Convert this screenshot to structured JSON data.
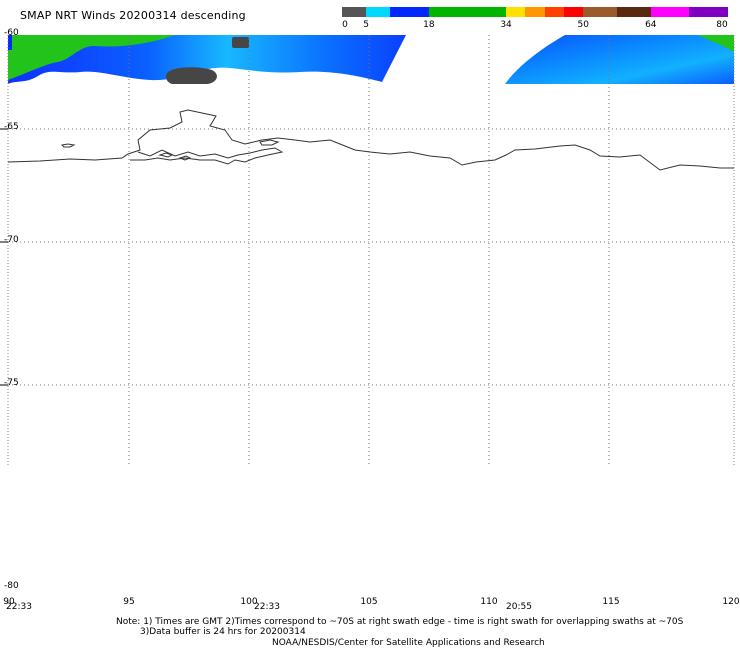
{
  "title": "SMAP NRT Winds  20200314 descending",
  "colorbar": {
    "segments": [
      {
        "from": 0,
        "to": 5,
        "color": "#555555"
      },
      {
        "from": 5,
        "to": 10,
        "color": "#00d8ff"
      },
      {
        "from": 10,
        "to": 18,
        "color": "#0028ff"
      },
      {
        "from": 18,
        "to": 34,
        "color": "#00b400"
      },
      {
        "from": 34,
        "to": 38,
        "color": "#ffe000"
      },
      {
        "from": 38,
        "to": 42,
        "color": "#ff9800"
      },
      {
        "from": 42,
        "to": 46,
        "color": "#ff4000"
      },
      {
        "from": 46,
        "to": 50,
        "color": "#ff0000"
      },
      {
        "from": 50,
        "to": 57,
        "color": "#9b5a2d"
      },
      {
        "from": 57,
        "to": 64,
        "color": "#5a2a10"
      },
      {
        "from": 64,
        "to": 72,
        "color": "#ff00ff"
      },
      {
        "from": 72,
        "to": 80,
        "color": "#8000c0"
      }
    ],
    "tick_labels": [
      "0",
      "5",
      "18",
      "34",
      "50",
      "64",
      "80"
    ]
  },
  "map": {
    "lat_labels": [
      "-60",
      "-65",
      "-70",
      "-75",
      "-80"
    ],
    "lon_labels": [
      "90",
      "95",
      "100",
      "105",
      "110",
      "115",
      "120"
    ],
    "time_labels": [
      "22:33",
      "22:33",
      "20:55"
    ]
  },
  "notes": {
    "line1": "Note: 1) Times are GMT 2)Times correspond to ~70S at right swath edge - time is right swath for overlapping swaths at ~70S",
    "line2": "3)Data buffer is 24 hrs for 20200314",
    "line3": "NOAA/NESDIS/Center for Satellite Applications and Research"
  }
}
